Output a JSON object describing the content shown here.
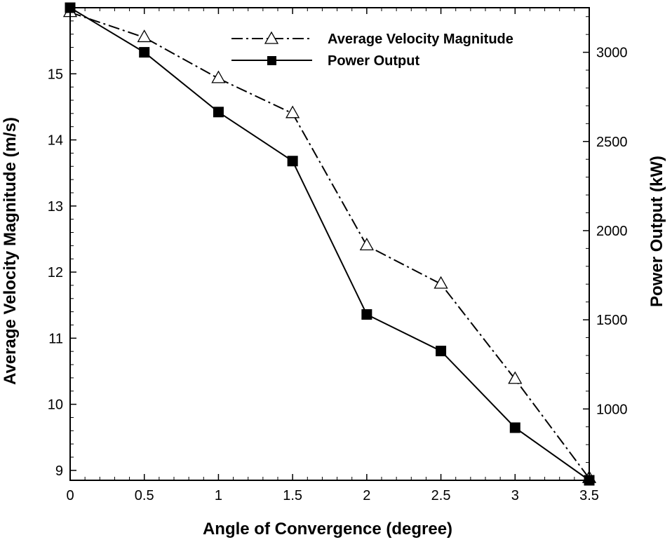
{
  "chart_data": {
    "type": "line",
    "title": "",
    "xlabel": "Angle of Convergence (degree)",
    "ylabel_left": "Average Velocity Magnitude (m/s)",
    "ylabel_right": "Power Output (kW)",
    "xlim": [
      0,
      3.5
    ],
    "ylim_left": [
      8.85,
      16.0
    ],
    "ylim_right": [
      600,
      3250
    ],
    "x": [
      0,
      0.5,
      1,
      1.5,
      2,
      2.5,
      3,
      3.5
    ],
    "x_tick_labels": [
      "0",
      "0.5",
      "1",
      "1.5",
      "2",
      "2.5",
      "3",
      "3.5"
    ],
    "y_left_ticks": [
      9,
      10,
      11,
      12,
      13,
      14,
      15
    ],
    "y_left_tick_labels": [
      "9",
      "10",
      "11",
      "12",
      "13",
      "14",
      "15"
    ],
    "y_right_ticks": [
      1000,
      1500,
      2000,
      2500,
      3000
    ],
    "y_right_tick_labels": [
      "1000",
      "1500",
      "2000",
      "2500",
      "3000"
    ],
    "series": [
      {
        "name": "Average Velocity Magnitude",
        "axis": "left",
        "line_style": "dash-dot",
        "marker": "open-triangle",
        "color": "#000000",
        "values": [
          15.93,
          15.55,
          14.93,
          14.4,
          12.4,
          11.82,
          10.38,
          8.88
        ]
      },
      {
        "name": "Power Output",
        "axis": "right",
        "line_style": "solid",
        "marker": "filled-square",
        "color": "#000000",
        "values": [
          3250,
          3000,
          2665,
          2390,
          1530,
          1325,
          895,
          600
        ]
      }
    ],
    "legend": {
      "position": "top-right",
      "entries": [
        "Average Velocity Magnitude",
        "Power Output"
      ]
    }
  }
}
